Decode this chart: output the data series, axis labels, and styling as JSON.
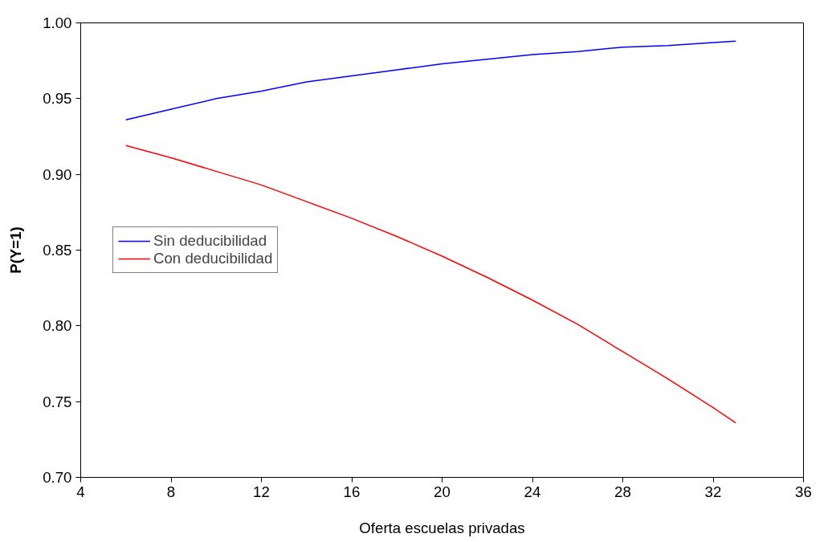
{
  "chart_data": {
    "type": "line",
    "xlabel": "Oferta escuelas privadas",
    "ylabel": "P(Y=1)",
    "x": [
      6,
      8,
      10,
      12,
      14,
      16,
      18,
      20,
      22,
      24,
      26,
      28,
      30,
      32,
      33
    ],
    "series": [
      {
        "name": "Sin deducibilidad",
        "color": "#0000ff",
        "values": [
          0.936,
          0.943,
          0.95,
          0.955,
          0.961,
          0.965,
          0.969,
          0.973,
          0.976,
          0.979,
          0.981,
          0.984,
          0.985,
          0.987,
          0.988
        ]
      },
      {
        "name": "Con deducibilidad",
        "color": "#ff0000",
        "values": [
          0.919,
          0.911,
          0.902,
          0.893,
          0.882,
          0.871,
          0.859,
          0.846,
          0.832,
          0.817,
          0.801,
          0.783,
          0.765,
          0.746,
          0.736
        ]
      }
    ],
    "xlim": [
      4,
      36
    ],
    "xticks": [
      4,
      8,
      12,
      16,
      20,
      24,
      28,
      32,
      36
    ],
    "ylim": [
      0.7,
      1.0
    ],
    "yticks": [
      {
        "value": 0.7,
        "label": "0.70"
      },
      {
        "value": 0.75,
        "label": "0.75"
      },
      {
        "value": 0.8,
        "label": "0.80"
      },
      {
        "value": 0.85,
        "label": "0.85"
      },
      {
        "value": 0.9,
        "label": "0.90"
      },
      {
        "value": 0.95,
        "label": "0.95"
      },
      {
        "value": 1.0,
        "label": "1.00"
      }
    ],
    "grid": false,
    "legend": "left",
    "line_style": "solid"
  }
}
